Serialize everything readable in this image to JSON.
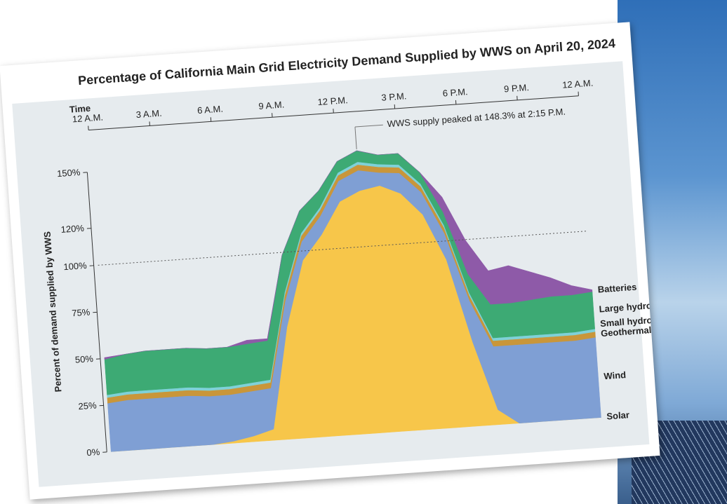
{
  "chart_data": {
    "type": "stacked-area",
    "title": "Percentage of California Main Grid Electricity Demand Supplied by WWS on April 20, 2024",
    "x_label": "Time",
    "y_label": "Percent of demand supplied by WWS",
    "annotation": "WWS supply peaked at 148.3% at 2:15 P.M.",
    "x": [
      0,
      1,
      2,
      3,
      4,
      5,
      6,
      7,
      8,
      9,
      10,
      11,
      12,
      13,
      14,
      15,
      16,
      17,
      18,
      19,
      20,
      21,
      22,
      23,
      24
    ],
    "xlim": [
      0,
      24
    ],
    "xticks": [
      {
        "value": 0,
        "label": "12 A.M."
      },
      {
        "value": 3,
        "label": "3 A.M."
      },
      {
        "value": 6,
        "label": "6 A.M."
      },
      {
        "value": 9,
        "label": "9 A.M."
      },
      {
        "value": 12,
        "label": "12 P.M."
      },
      {
        "value": 15,
        "label": "3 P.M."
      },
      {
        "value": 18,
        "label": "6 P.M."
      },
      {
        "value": 21,
        "label": "9 P.M."
      },
      {
        "value": 24,
        "label": "12 A.M."
      }
    ],
    "ylim": [
      0,
      150
    ],
    "yticks": [
      {
        "value": 0,
        "label": "0%"
      },
      {
        "value": 25,
        "label": "25%"
      },
      {
        "value": 50,
        "label": "50%"
      },
      {
        "value": 75,
        "label": "75%"
      },
      {
        "value": 100,
        "label": "100%"
      },
      {
        "value": 120,
        "label": "120%"
      },
      {
        "value": 150,
        "label": "150%"
      }
    ],
    "reference_line": 100,
    "series": [
      {
        "name": "Solar",
        "color": "#f7c64a",
        "values": [
          0,
          0,
          0,
          0,
          0,
          0,
          1,
          3,
          6,
          60,
          95,
          108,
          125,
          130,
          132,
          127,
          115,
          90,
          45,
          8,
          0,
          0,
          0,
          0,
          0
        ]
      },
      {
        "name": "Wind",
        "color": "#7f9fd4",
        "values": [
          26,
          27,
          27,
          27,
          27,
          26,
          25,
          24,
          22,
          14,
          10,
          10,
          11,
          11,
          7,
          11,
          12,
          14,
          22,
          34,
          42,
          42,
          42,
          42,
          43
        ]
      },
      {
        "name": "Geothermal",
        "color": "#c9963a",
        "values": [
          3,
          3,
          3,
          3,
          3,
          3,
          3,
          3,
          3,
          3,
          3,
          3,
          3,
          3,
          3,
          3,
          3,
          3,
          3,
          3,
          3,
          3,
          3,
          3,
          3
        ]
      },
      {
        "name": "Small hydro",
        "color": "#7fd1d8",
        "values": [
          1.5,
          1.5,
          1.5,
          1.5,
          1.5,
          1.5,
          1.5,
          1.5,
          1.5,
          1.5,
          1.5,
          1.5,
          1.5,
          1.5,
          1.5,
          1.5,
          1.5,
          1.5,
          1.5,
          1.5,
          1.5,
          1.5,
          1.5,
          1.5,
          1.5
        ]
      },
      {
        "name": "Large hydro",
        "color": "#3daa74",
        "values": [
          19,
          20,
          21,
          21,
          21,
          21,
          21,
          21,
          21,
          20,
          12,
          9,
          6,
          6,
          5,
          6,
          6,
          7,
          10,
          18,
          18,
          19,
          20,
          20,
          20
        ]
      },
      {
        "name": "Batteries",
        "color": "#8e5aa8",
        "values": [
          1,
          0,
          0,
          0,
          0,
          0,
          0,
          2,
          1,
          0,
          0,
          0,
          0,
          0,
          0,
          0,
          0,
          8,
          18,
          18,
          20,
          15,
          10,
          5,
          1
        ]
      }
    ]
  }
}
